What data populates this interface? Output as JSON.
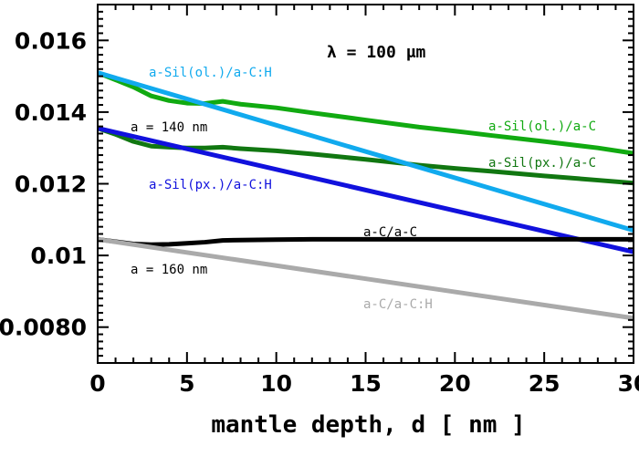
{
  "chart_data": {
    "type": "line",
    "xlabel": "mantle depth, d [ nm ]",
    "ylabel": "",
    "xlim": [
      0,
      30
    ],
    "ylim": [
      0.007,
      0.017
    ],
    "x_ticks": [
      0,
      5,
      10,
      15,
      20,
      25,
      30
    ],
    "x_tick_labels": [
      "0",
      "5",
      "10",
      "15",
      "20",
      "25",
      "30"
    ],
    "y_ticks": [
      0.008,
      0.01,
      0.012,
      0.014,
      0.016
    ],
    "y_tick_labels": [
      "0.0080",
      "0.01",
      "0.012",
      "0.014",
      "0.016"
    ],
    "grid": false,
    "annotations": [
      {
        "text": "λ = 100 μm",
        "color": "#000000"
      },
      {
        "text": "a = 140 nm",
        "color": "#000000"
      },
      {
        "text": "a = 160 nm",
        "color": "#000000"
      }
    ],
    "series": [
      {
        "name": "a-Sil(ol.)/a-C",
        "color": "#11aa11",
        "x": [
          0,
          1,
          2,
          3,
          4,
          5,
          6,
          7,
          8,
          10,
          12,
          15,
          18,
          20,
          22,
          25,
          28,
          30
        ],
        "y": [
          0.0151,
          0.0149,
          0.0147,
          0.01445,
          0.01432,
          0.01425,
          0.01424,
          0.0143,
          0.01422,
          0.01412,
          0.01398,
          0.01378,
          0.01358,
          0.01347,
          0.01335,
          0.01318,
          0.013,
          0.01285
        ]
      },
      {
        "name": "a-Sil(px.)/a-C",
        "color": "#117711",
        "x": [
          0,
          1,
          2,
          3,
          4,
          5,
          6,
          7,
          8,
          10,
          12,
          15,
          18,
          20,
          22,
          25,
          28,
          30
        ],
        "y": [
          0.01355,
          0.01338,
          0.01318,
          0.01305,
          0.01302,
          0.013,
          0.013,
          0.01302,
          0.01298,
          0.01292,
          0.01283,
          0.01268,
          0.01252,
          0.01243,
          0.01235,
          0.01222,
          0.0121,
          0.01202
        ]
      },
      {
        "name": "a-Sil(ol.)/a-C:H",
        "color": "#11aaee",
        "x": [
          0,
          30
        ],
        "y": [
          0.0151,
          0.0107
        ]
      },
      {
        "name": "a-Sil(px.)/a-C:H",
        "color": "#1111dd",
        "x": [
          0,
          30
        ],
        "y": [
          0.01355,
          0.0101
        ]
      },
      {
        "name": "a-C/a-C",
        "color": "#000000",
        "x": [
          0,
          2,
          3,
          4,
          5,
          6,
          7,
          8,
          10,
          12,
          15,
          20,
          25,
          30
        ],
        "y": [
          0.01045,
          0.01032,
          0.0103,
          0.01031,
          0.01034,
          0.01037,
          0.01042,
          0.01043,
          0.01044,
          0.01045,
          0.01045,
          0.01045,
          0.01045,
          0.01045
        ]
      },
      {
        "name": "a-C/a-C:H",
        "color": "#aaaaaa",
        "x": [
          0,
          30
        ],
        "y": [
          0.01045,
          0.00825
        ]
      }
    ]
  }
}
